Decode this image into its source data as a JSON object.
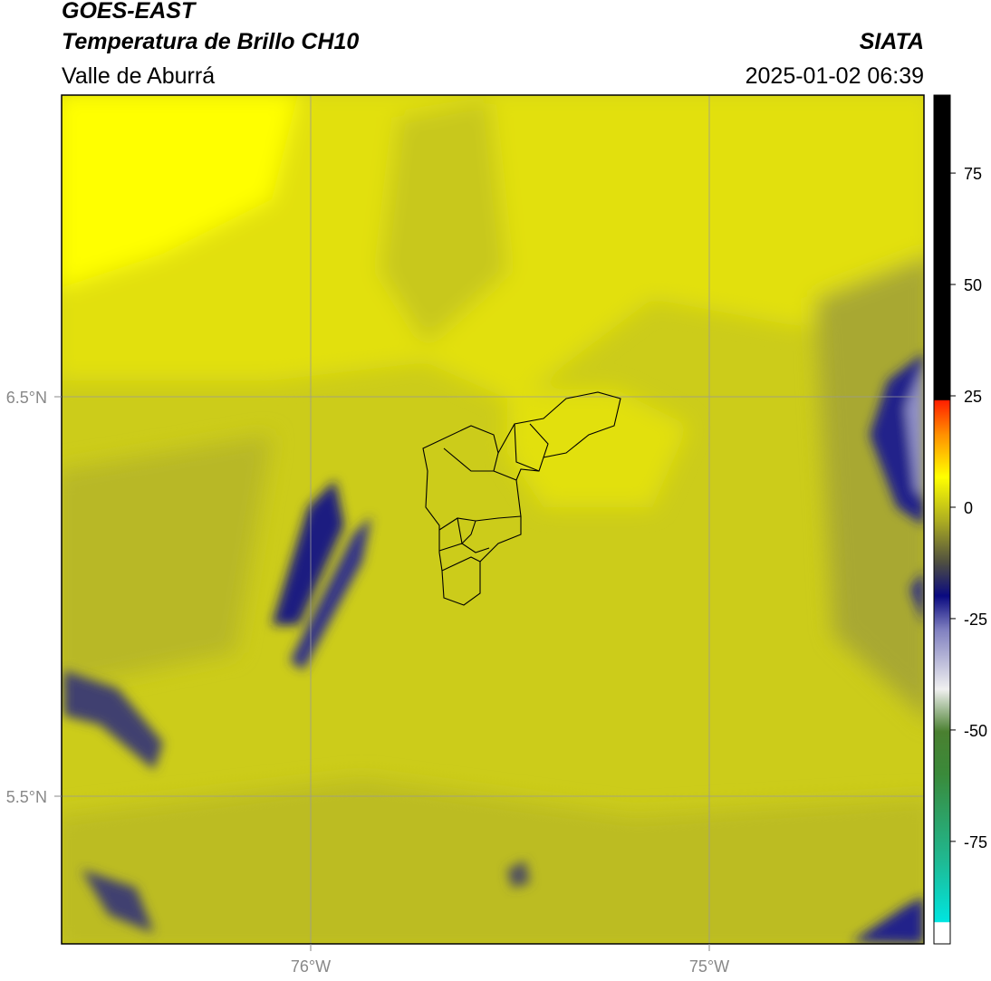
{
  "header": {
    "title": "GOES-EAST",
    "subtitle": "Temperatura de Brillo CH10",
    "source": "SIATA",
    "region": "Valle de Aburrá",
    "datetime": "2025-01-02 06:39"
  },
  "map": {
    "lat_labels": [
      "6.5°N",
      "5.5°N"
    ],
    "lon_labels": [
      "76°W",
      "75°W"
    ]
  },
  "colorbar": {
    "lim": [
      -98,
      92.5
    ],
    "ticks": [
      75,
      50,
      25,
      0,
      -25,
      -50,
      -75
    ]
  }
}
